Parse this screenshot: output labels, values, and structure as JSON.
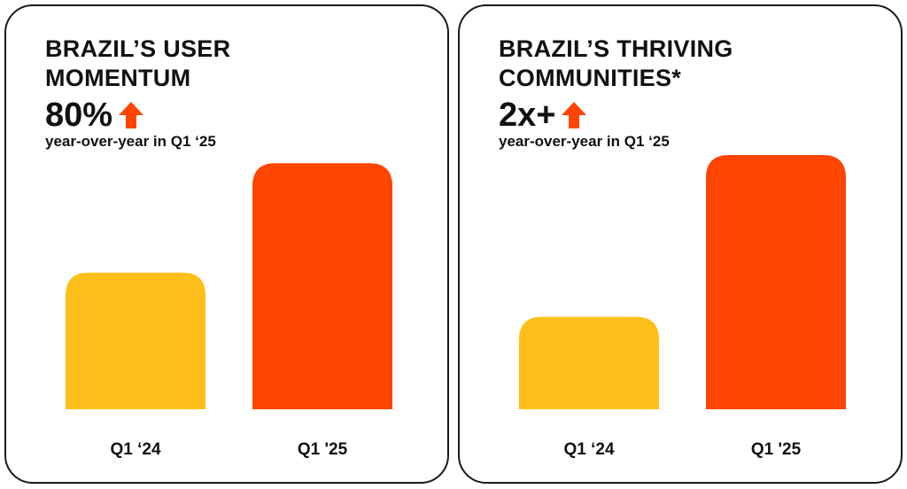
{
  "chart_data": [
    {
      "type": "bar",
      "title": [
        "BRAZIL’S USER",
        "MOMENTUM"
      ],
      "stat": "80%",
      "subtitle": "year-over-year in Q1 ‘25",
      "categories": [
        "Q1 ‘24",
        "Q1 '25"
      ],
      "values": [
        100,
        180
      ],
      "colors": [
        "#FFBF1A",
        "#FF4500"
      ],
      "ylim": [
        0,
        186
      ]
    },
    {
      "type": "bar",
      "title": [
        "BRAZIL’S THRIVING",
        "COMMUNITIES*"
      ],
      "stat": "2x+",
      "subtitle": "year-over-year in Q1 ‘25",
      "categories": [
        "Q1 ‘24",
        "Q1 '25"
      ],
      "values": [
        100,
        275
      ],
      "colors": [
        "#FFBF1A",
        "#FF4500"
      ],
      "ylim": [
        0,
        275
      ]
    }
  ],
  "accent_color": "#FF4500",
  "icons": {
    "stat_indicator": "up-arrow-icon"
  }
}
